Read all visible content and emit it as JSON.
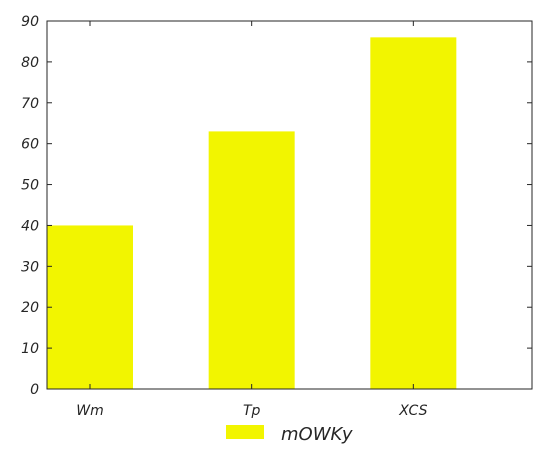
{
  "chart_data": {
    "type": "bar",
    "categories": [
      "Wm",
      "Tp",
      "XCS"
    ],
    "series": [
      {
        "name": "mOWKy",
        "values": [
          40,
          63,
          86
        ],
        "color": "#f2f500"
      }
    ],
    "ylim": [
      0,
      90
    ],
    "yticks": [
      0,
      10,
      20,
      30,
      40,
      50,
      60,
      70,
      80,
      90
    ],
    "grid": false,
    "legend_position": "bottom-center",
    "axis_color": "#262626"
  }
}
